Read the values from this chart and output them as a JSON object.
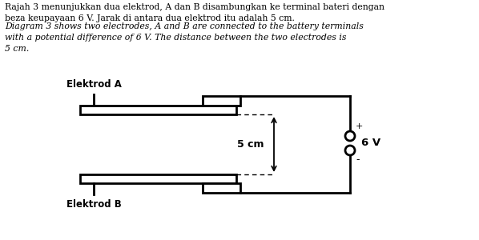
{
  "normal_text": "Rajah 3 menunjukkan dua elektrod, A dan B disambungkan ke terminal bateri dengan\nbeza keupayaan 6 V. Jarak di antara dua elektrod itu adalah 5 cm.",
  "italic_text": "Diagram 3 shows two electrodes, A and B are connected to the battery terminals\nwith a potential difference of 6 V. The distance between the two electrodes is\n5 cm.",
  "label_A": "Elektrod A",
  "label_B": "Elektrod B",
  "label_5cm": "5 cm",
  "label_6V": "6 V",
  "label_plus": "+",
  "label_minus": "-",
  "bg_color": "#ffffff",
  "line_color": "#000000",
  "text_fontsize": 7.8,
  "label_fontsize": 8.5
}
